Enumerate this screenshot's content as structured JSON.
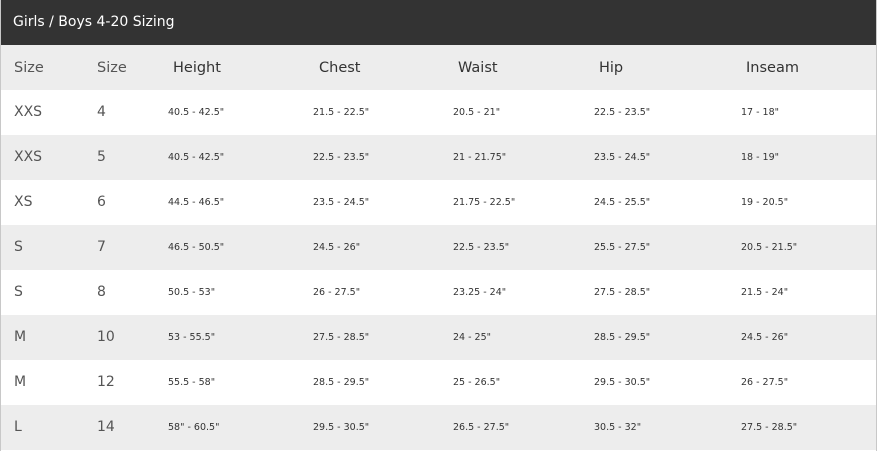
{
  "title": "Girls / Boys 4-20 Sizing",
  "columns": [
    "Size",
    "Size",
    "Height",
    "Chest",
    "Waist",
    "Hip",
    "Inseam"
  ],
  "rows": [
    [
      "XXS",
      "4",
      "40.5 - 42.5\"",
      "21.5 - 22.5\"",
      "20.5 - 21\"",
      "22.5 - 23.5\"",
      "17 - 18\""
    ],
    [
      "XXS",
      "5",
      "40.5 - 42.5\"",
      "22.5 - 23.5\"",
      "21 - 21.75\"",
      "23.5 - 24.5\"",
      "18 - 19\""
    ],
    [
      "XS",
      "6",
      "44.5 - 46.5\"",
      "23.5 - 24.5\"",
      "21.75 - 22.5\"",
      "24.5 - 25.5\"",
      "19 - 20.5\""
    ],
    [
      "S",
      "7",
      "46.5 - 50.5\"",
      "24.5 - 26\"",
      "22.5 - 23.5\"",
      "25.5 - 27.5\"",
      "20.5 - 21.5\""
    ],
    [
      "S",
      "8",
      "50.5 - 53\"",
      "26 - 27.5\"",
      "23.25 - 24\"",
      "27.5 - 28.5\"",
      "21.5 - 24\""
    ],
    [
      "M",
      "10",
      "53 - 55.5\"",
      "27.5 - 28.5\"",
      "24 - 25\"",
      "28.5 - 29.5\"",
      "24.5 - 26\""
    ],
    [
      "M",
      "12",
      "55.5 - 58\"",
      "28.5 - 29.5\"",
      "25 - 26.5\"",
      "29.5 - 30.5\"",
      "26 - 27.5\""
    ],
    [
      "L",
      "14",
      "58\" - 60.5\"",
      "29.5 - 30.5\"",
      "26.5 - 27.5\"",
      "30.5 - 32\"",
      "27.5 - 28.5\""
    ]
  ]
}
